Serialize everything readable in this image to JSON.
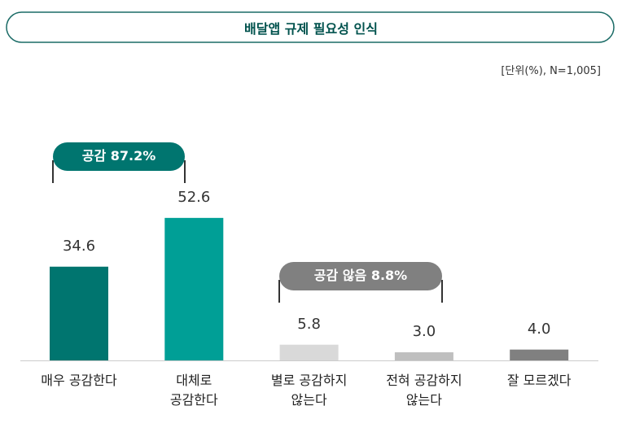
{
  "chart_data": {
    "type": "bar",
    "title": "배달앱 규제 필요성 인식",
    "subtitle": "[단위(%), N=1,005]",
    "categories": [
      "매우 공감한다",
      "대체로\n공감한다",
      "별로 공감하지\n않는다",
      "전혀 공감하지\n않는다",
      "잘 모르겠다"
    ],
    "values": [
      34.6,
      52.6,
      5.8,
      3.0,
      4.0
    ],
    "value_labels": [
      "34.6",
      "52.6",
      "5.8",
      "3.0",
      "4.0"
    ],
    "colors": [
      "#00756f",
      "#009f96",
      "#d9d9d9",
      "#bfbfbf",
      "#808080"
    ],
    "annotations": [
      {
        "text": "공감 87.2%",
        "color": "#00756f"
      },
      {
        "text": "공감 않음 8.8%",
        "color": "#808080"
      }
    ]
  }
}
